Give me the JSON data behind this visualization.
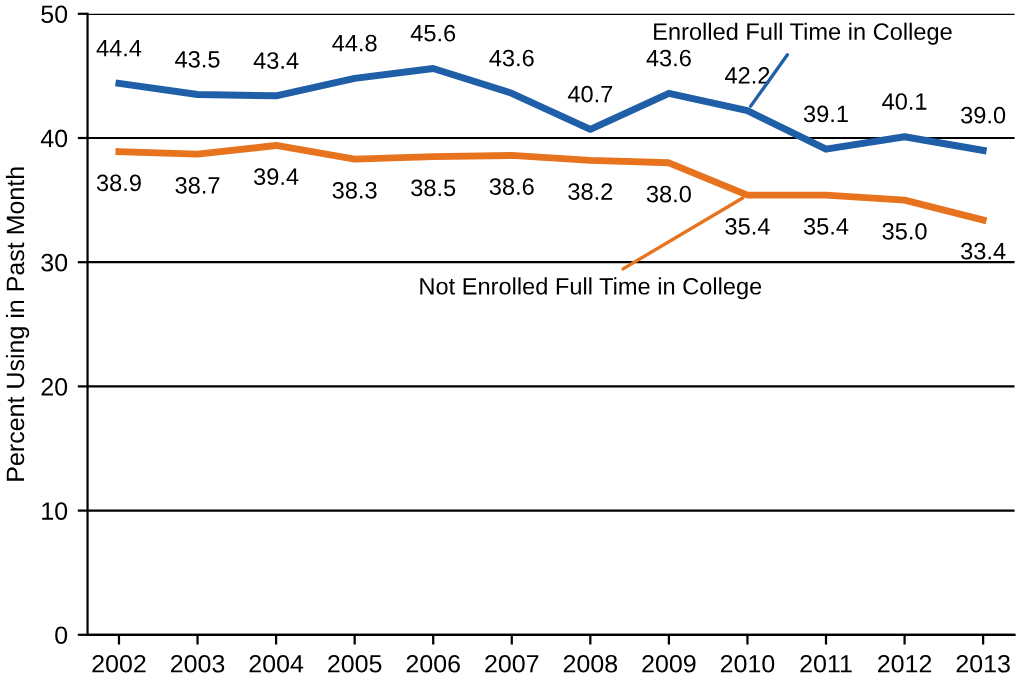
{
  "chart_data": {
    "type": "line",
    "ylabel": "Percent Using in Past Month",
    "categories": [
      "2002",
      "2003",
      "2004",
      "2005",
      "2006",
      "2007",
      "2008",
      "2009",
      "2010",
      "2011",
      "2012",
      "2013"
    ],
    "series": [
      {
        "name": "Enrolled Full Time in College",
        "color": "#1f5fa8",
        "values": [
          44.4,
          43.5,
          43.4,
          44.8,
          45.6,
          43.6,
          40.7,
          43.6,
          42.2,
          39.1,
          40.1,
          39.0
        ],
        "value_labels": [
          "44.4",
          "43.5",
          "43.4",
          "44.8",
          "45.6",
          "43.6",
          "40.7",
          "43.6",
          "42.2",
          "39.1",
          "40.1",
          "39.0"
        ]
      },
      {
        "name": "Not Enrolled Full Time in College",
        "color": "#e8731f",
        "values": [
          38.9,
          38.7,
          39.4,
          38.3,
          38.5,
          38.6,
          38.2,
          38.0,
          35.4,
          35.4,
          35.0,
          33.4
        ],
        "value_labels": [
          "38.9",
          "38.7",
          "39.4",
          "38.3",
          "38.5",
          "38.6",
          "38.2",
          "38.0",
          "35.4",
          "35.4",
          "35.0",
          "33.4"
        ]
      }
    ],
    "ylim": [
      0,
      50
    ],
    "yticks": [
      0,
      10,
      20,
      30,
      40,
      50
    ],
    "grid": "y",
    "marker": "none",
    "line_style": "solid",
    "legend": false
  }
}
